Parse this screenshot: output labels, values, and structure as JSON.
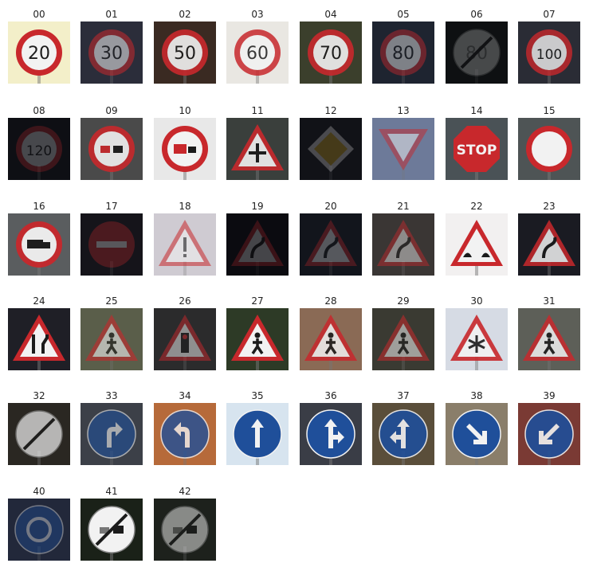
{
  "colors": {
    "sign_red": "#c8282c",
    "sign_blue": "#1f4f9a",
    "sign_white": "#f2f2f2",
    "glyph_dark": "#1b1b1b",
    "page_bg": "#ffffff"
  },
  "signs": [
    {
      "label": "00",
      "shape": "circle-red",
      "content": "20",
      "bg": "#f3efc9",
      "bright": 1.0
    },
    {
      "label": "01",
      "shape": "circle-red",
      "content": "30",
      "bg": "#2b2d3a",
      "bright": 0.55
    },
    {
      "label": "02",
      "shape": "circle-red",
      "content": "50",
      "bg": "#3a2a22",
      "bright": 0.9
    },
    {
      "label": "03",
      "shape": "circle-red",
      "content": "60",
      "bg": "#e9e7e2",
      "bright": 0.85
    },
    {
      "label": "04",
      "shape": "circle-red",
      "content": "70",
      "bg": "#3b3f2c",
      "bright": 0.9
    },
    {
      "label": "05",
      "shape": "circle-red",
      "content": "80",
      "bg": "#1e2430",
      "bright": 0.45
    },
    {
      "label": "06",
      "shape": "end-speed",
      "content": "80",
      "bg": "#0e1012",
      "bright": 0.22
    },
    {
      "label": "07",
      "shape": "circle-red",
      "content": "100",
      "bg": "#2a2c35",
      "bright": 0.8
    },
    {
      "label": "08",
      "shape": "circle-red",
      "content": "120",
      "bg": "#0e0f14",
      "bright": 0.25
    },
    {
      "label": "09",
      "shape": "no-passing",
      "content": "",
      "bg": "#4a4a4a",
      "bright": 0.9
    },
    {
      "label": "10",
      "shape": "no-passing-truck",
      "content": "",
      "bg": "#e8e8e8",
      "bright": 1.0
    },
    {
      "label": "11",
      "shape": "triangle",
      "content": "crossroads",
      "bg": "#3a3f3c",
      "bright": 0.9
    },
    {
      "label": "12",
      "shape": "diamond",
      "content": "",
      "bg": "#111217",
      "bright": 0.25
    },
    {
      "label": "13",
      "shape": "yield",
      "content": "",
      "bg": "#6d7a99",
      "bright": 0.5
    },
    {
      "label": "14",
      "shape": "stop",
      "content": "STOP",
      "bg": "#4a5256",
      "bright": 1.0
    },
    {
      "label": "15",
      "shape": "no-vehicles",
      "content": "",
      "bg": "#4e5455",
      "bright": 1.0
    },
    {
      "label": "16",
      "shape": "no-trucks",
      "content": "",
      "bg": "#5a5d5f",
      "bright": 0.95
    },
    {
      "label": "17",
      "shape": "no-entry",
      "content": "",
      "bg": "#15141a",
      "bright": 0.3
    },
    {
      "label": "18",
      "shape": "triangle",
      "content": "!",
      "bg": "#cfcbd2",
      "bright": 0.55
    },
    {
      "label": "19",
      "shape": "triangle",
      "content": "curve",
      "bg": "#0b0b10",
      "bright": 0.15
    },
    {
      "label": "20",
      "shape": "triangle",
      "content": "curve",
      "bg": "#12151c",
      "bright": 0.3
    },
    {
      "label": "21",
      "shape": "triangle",
      "content": "double-curve",
      "bg": "#3a3634",
      "bright": 0.45
    },
    {
      "label": "22",
      "shape": "triangle",
      "content": "bumpy",
      "bg": "#f2f0f0",
      "bright": 1.0
    },
    {
      "label": "23",
      "shape": "triangle",
      "content": "slippery",
      "bg": "#1a1b22",
      "bright": 0.85
    },
    {
      "label": "24",
      "shape": "triangle",
      "content": "narrows",
      "bg": "#1f1f26",
      "bright": 1.0
    },
    {
      "label": "25",
      "shape": "triangle",
      "content": "roadwork",
      "bg": "#5a5e4a",
      "bright": 0.6
    },
    {
      "label": "26",
      "shape": "triangle",
      "content": "signals",
      "bg": "#2b2b2c",
      "bright": 0.5
    },
    {
      "label": "27",
      "shape": "triangle",
      "content": "pedestrian",
      "bg": "#2d3a26",
      "bright": 1.0
    },
    {
      "label": "28",
      "shape": "triangle",
      "content": "children",
      "bg": "#8a6a55",
      "bright": 0.85
    },
    {
      "label": "29",
      "shape": "triangle",
      "content": "bicycle",
      "bg": "#3a3a32",
      "bright": 0.55
    },
    {
      "label": "30",
      "shape": "triangle",
      "content": "snow",
      "bg": "#d6dbe4",
      "bright": 0.9
    },
    {
      "label": "31",
      "shape": "triangle",
      "content": "deer",
      "bg": "#5d5f58",
      "bright": 0.85
    },
    {
      "label": "32",
      "shape": "end-limits",
      "content": "",
      "bg": "#2a2722",
      "bright": 0.7
    },
    {
      "label": "33",
      "shape": "blue-circle",
      "content": "turn-right",
      "bg": "#3c4048",
      "bright": 0.6
    },
    {
      "label": "34",
      "shape": "blue-circle",
      "content": "turn-left",
      "bg": "#b66a3a",
      "bright": 0.8
    },
    {
      "label": "35",
      "shape": "blue-circle",
      "content": "ahead",
      "bg": "#d7e4ef",
      "bright": 1.0
    },
    {
      "label": "36",
      "shape": "blue-circle",
      "content": "ahead-right",
      "bg": "#3a3d46",
      "bright": 1.0
    },
    {
      "label": "37",
      "shape": "blue-circle",
      "content": "ahead-left",
      "bg": "#5a4e3a",
      "bright": 0.9
    },
    {
      "label": "38",
      "shape": "blue-circle",
      "content": "keep-right",
      "bg": "#8a7e6a",
      "bright": 1.0
    },
    {
      "label": "39",
      "shape": "blue-circle",
      "content": "keep-left",
      "bg": "#7a3a34",
      "bright": 0.9
    },
    {
      "label": "40",
      "shape": "blue-circle",
      "content": "roundabout",
      "bg": "#22283a",
      "bright": 0.4
    },
    {
      "label": "41",
      "shape": "end-no-passing",
      "content": "",
      "bg": "#1a2118",
      "bright": 1.0
    },
    {
      "label": "42",
      "shape": "end-no-passing-truck",
      "content": "",
      "bg": "#1d211c",
      "bright": 0.5
    }
  ]
}
